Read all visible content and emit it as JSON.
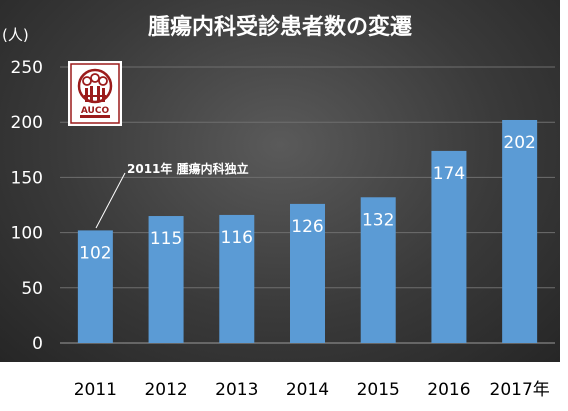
{
  "chart_data": {
    "type": "bar",
    "title": "腫瘍内科受診患者数の変遷",
    "ylabel": "(人)",
    "xlabel": "",
    "categories": [
      "2011",
      "2012",
      "2013",
      "2014",
      "2015",
      "2016",
      "2017年"
    ],
    "values": [
      102,
      115,
      116,
      126,
      132,
      174,
      202
    ],
    "ylim": [
      0,
      250
    ],
    "yticks": [
      0,
      50,
      100,
      150,
      200,
      250
    ],
    "grid": true,
    "bar_color": "#5b9bd5",
    "annotation": {
      "text": "2011年 腫瘍内科独立",
      "target": "2011"
    }
  },
  "logo": {
    "text": "AUCO",
    "color": "#9b1b1b"
  }
}
